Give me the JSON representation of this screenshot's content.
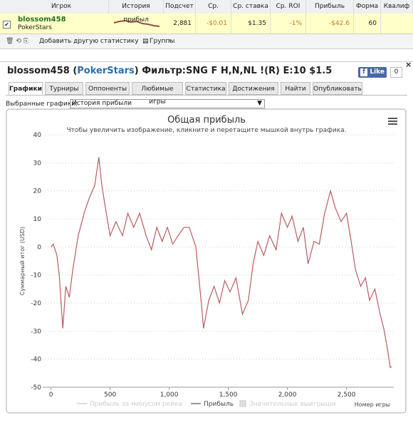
{
  "table": {
    "headers": [
      "Игрок",
      "История прибыл",
      "Подсчет",
      "Ср. прибы.",
      "Ср. ставка",
      "Ср. ROI",
      "Прибыль",
      "Форма",
      "Квалиф"
    ],
    "player": "blossom458",
    "site": "PokerStars",
    "cells": [
      "2,881",
      "-$0.01",
      "$1.35",
      "-1%",
      "-$42.6",
      "60"
    ]
  },
  "toolbar": {
    "add": "Добавить другую статистику",
    "groups": "Группы"
  },
  "header": {
    "player": "blossom458",
    "site": "PokerStars",
    "filter": "Фильтр:SNG F H,N,NL !(R) E:10 $1.5",
    "like": "Like",
    "like_count": "0"
  },
  "tabs": [
    "Графики",
    "Турниры",
    "Оппоненты",
    "Любимые игры",
    "Статистика",
    "Достижения",
    "Найти",
    "Опубликовать"
  ],
  "selector": {
    "label": "Выбранные графики:",
    "value": "История прибыли"
  },
  "chart_data": {
    "type": "line",
    "title": "Общая прибыль",
    "subtitle": "Чтобы увеличить изображение, кликните и перетащите мышкой внутрь графика.",
    "y_label": "Суммарный итог (USD)",
    "x_label": "Номер игры",
    "x": [
      0,
      20,
      50,
      70,
      100,
      125,
      155,
      185,
      230,
      280,
      320,
      370,
      405,
      430,
      460,
      500,
      550,
      605,
      650,
      700,
      750,
      805,
      850,
      895,
      940,
      985,
      1030,
      1075,
      1125,
      1170,
      1225,
      1270,
      1290,
      1335,
      1380,
      1425,
      1470,
      1515,
      1565,
      1620,
      1670,
      1710,
      1750,
      1800,
      1850,
      1905,
      1950,
      2000,
      2040,
      2090,
      2135,
      2175,
      2225,
      2270,
      2315,
      2365,
      2405,
      2455,
      2500,
      2540,
      2575,
      2620,
      2660,
      2695,
      2740,
      2785,
      2815,
      2845,
      2870,
      2881
    ],
    "series": [
      {
        "name": "Прибыль",
        "color": "#b85c60",
        "values": [
          0,
          1,
          -3,
          -10,
          -29,
          -14,
          -18,
          -8,
          4,
          12,
          17,
          22,
          32,
          22,
          14,
          4,
          9,
          4,
          12,
          7,
          12,
          4,
          -1,
          7,
          2,
          7,
          1,
          4,
          7,
          7,
          0,
          -19,
          -29,
          -19,
          -14,
          -20,
          -12,
          -16,
          -11,
          -24,
          -19,
          -6,
          2,
          -3,
          4,
          -1,
          12,
          7,
          11,
          2,
          7,
          -6,
          2,
          1,
          12,
          20,
          14,
          9,
          12,
          2,
          -8,
          -14,
          -11,
          -19,
          -15,
          -24,
          -29,
          -36,
          -43,
          -42.6
        ]
      }
    ],
    "legend_inactive": [
      "Прибыль за минусом рейка",
      "Значительные выигрыши"
    ],
    "xlim": [
      -70,
      2900
    ],
    "xticks": [
      0,
      500,
      {
        "value": 1000,
        "label": "1,000"
      },
      {
        "value": 1500,
        "label": "1,500"
      },
      {
        "value": 2000,
        "label": "2,000"
      },
      {
        "value": 2500,
        "label": "2,500"
      }
    ],
    "ylim": [
      -50,
      40
    ],
    "yticks": [
      -50,
      -40,
      -30,
      -20,
      -10,
      0,
      10,
      20,
      30,
      40
    ],
    "grid": true
  }
}
